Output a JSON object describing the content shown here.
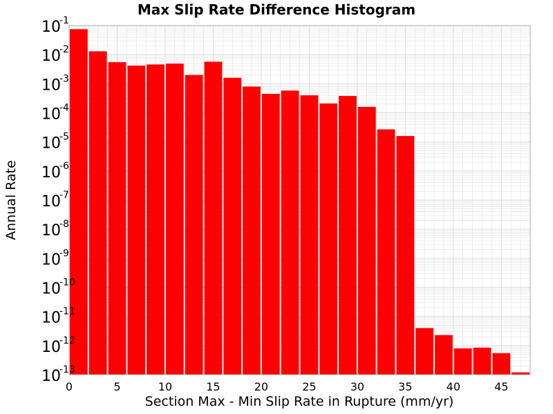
{
  "chart_data": {
    "type": "bar",
    "title": "Max Slip Rate Difference Histogram",
    "xlabel": "Section Max - Min Slip Rate in Rupture (mm/yr)",
    "ylabel": "Annual Rate",
    "y_scale": "log",
    "xlim": [
      0,
      48
    ],
    "ylim": [
      1e-13,
      0.1
    ],
    "bin_width": 2,
    "bin_centers": [
      1,
      3,
      5,
      7,
      9,
      11,
      13,
      15,
      17,
      19,
      21,
      23,
      25,
      27,
      29,
      31,
      33,
      35,
      37,
      39,
      41,
      43,
      45,
      47
    ],
    "values": [
      0.075,
      0.013,
      0.0055,
      0.0042,
      0.0046,
      0.0049,
      0.002,
      0.0057,
      0.0016,
      0.0008,
      0.00045,
      0.00058,
      0.0004,
      0.00021,
      0.00038,
      0.00016,
      2.7e-05,
      1.6e-05,
      4e-12,
      2.3e-12,
      8e-13,
      8.5e-13,
      5.5e-13,
      1.2e-13
    ],
    "x_ticks": [
      0,
      5,
      10,
      15,
      20,
      25,
      30,
      35,
      40,
      45
    ],
    "y_tick_exponents": [
      -1,
      -2,
      -3,
      -4,
      -5,
      -6,
      -7,
      -8,
      -9,
      -10,
      -11,
      -12,
      -13
    ],
    "y_tick_base": "10",
    "grid": true,
    "legend": "none",
    "colors": {
      "bar": "#ff0000",
      "grid": "#d9d9d9",
      "plot_border": "#aaaaaa"
    }
  }
}
